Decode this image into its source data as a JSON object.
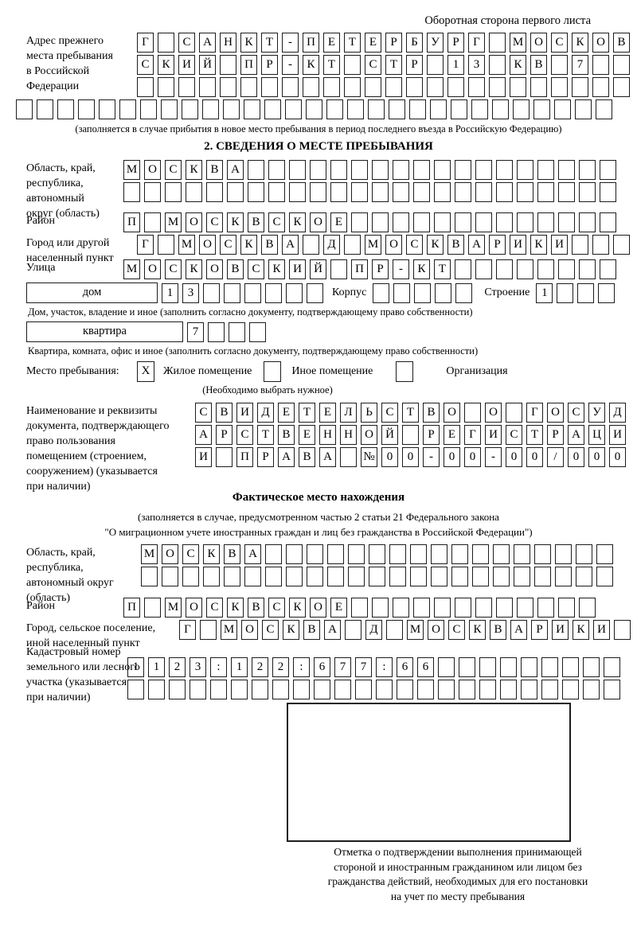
{
  "header": {
    "note": "Оборотная сторона первого листа"
  },
  "prev_address": {
    "label": "Адрес прежнего\nместа пребывания\nв Российской\nФедерации",
    "rows": [
      [
        "Г",
        "",
        "С",
        "А",
        "Н",
        "К",
        "Т",
        "-",
        "П",
        "Е",
        "Т",
        "Е",
        "Р",
        "Б",
        "У",
        "Р",
        "Г",
        "",
        "М",
        "О",
        "С",
        "К",
        "О",
        "В"
      ],
      [
        "С",
        "К",
        "И",
        "Й",
        "",
        "П",
        "Р",
        "-",
        "К",
        "Т",
        "",
        "С",
        "Т",
        "Р",
        "",
        "1",
        "3",
        "",
        "К",
        "В",
        "",
        "7",
        "",
        ""
      ],
      [
        "",
        "",
        "",
        "",
        "",
        "",
        "",
        "",
        "",
        "",
        "",
        "",
        "",
        "",
        "",
        "",
        "",
        "",
        "",
        "",
        "",
        "",
        "",
        ""
      ]
    ],
    "row_full": [
      "",
      "",
      "",
      "",
      "",
      "",
      "",
      "",
      "",
      "",
      "",
      "",
      "",
      "",
      "",
      "",
      "",
      "",
      "",
      "",
      "",
      "",
      "",
      "",
      "",
      "",
      "",
      "",
      ""
    ],
    "caption": "(заполняется в случае прибытия в новое место пребывания в период последнего въезда в Российскую Федерацию)"
  },
  "section2": {
    "title": "2. СВЕДЕНИЯ О МЕСТЕ ПРЕБЫВАНИЯ",
    "oblast": {
      "label": "Область, край,\nреспублика,\nавтономный\nокруг (область)",
      "rows": [
        [
          "М",
          "О",
          "С",
          "К",
          "В",
          "А",
          "",
          "",
          "",
          "",
          "",
          "",
          "",
          "",
          "",
          "",
          "",
          "",
          "",
          "",
          "",
          "",
          "",
          ""
        ],
        [
          "",
          "",
          "",
          "",
          "",
          "",
          "",
          "",
          "",
          "",
          "",
          "",
          "",
          "",
          "",
          "",
          "",
          "",
          "",
          "",
          "",
          "",
          "",
          ""
        ]
      ]
    },
    "rayon": {
      "label": "Район",
      "row": [
        "П",
        "",
        "М",
        "О",
        "С",
        "К",
        "В",
        "С",
        "К",
        "О",
        "Е",
        "",
        "",
        "",
        "",
        "",
        "",
        "",
        "",
        "",
        "",
        "",
        "",
        ""
      ]
    },
    "gorod": {
      "label": "Город или другой\nнаселенный пункт",
      "row": [
        "Г",
        "",
        "М",
        "О",
        "С",
        "К",
        "В",
        "А",
        "",
        "Д",
        "",
        "М",
        "О",
        "С",
        "К",
        "В",
        "А",
        "Р",
        "И",
        "К",
        "И",
        "",
        "",
        ""
      ]
    },
    "ulitsa": {
      "label": "Улица",
      "row": [
        "М",
        "О",
        "С",
        "К",
        "О",
        "В",
        "С",
        "К",
        "И",
        "Й",
        "",
        "П",
        "Р",
        "-",
        "К",
        "Т",
        "",
        "",
        "",
        "",
        "",
        "",
        "",
        ""
      ]
    },
    "dom": {
      "box_label": "дом",
      "cells": [
        "1",
        "3",
        "",
        "",
        "",
        "",
        "",
        ""
      ],
      "korpus_label": "Корпус",
      "korpus_cells": [
        "",
        "",
        "",
        "",
        ""
      ],
      "stroenie_label": "Строение",
      "stroenie_cells": [
        "1",
        "",
        "",
        ""
      ]
    },
    "dom_caption": "Дом, участок, владение и иное (заполнить согласно документу, подтверждающему право собственности)",
    "kvartira": {
      "box_label": "квартира",
      "cells": [
        "7",
        "",
        "",
        ""
      ]
    },
    "kvartira_caption": "Квартира, комната, офис и иное (заполнить согласно документу, подтверждающему право собственности)",
    "mesto": {
      "label": "Место пребывания:",
      "options": [
        {
          "checkbox": "X",
          "label": "Жилое помещение"
        },
        {
          "checkbox": "",
          "label": "Иное помещение"
        },
        {
          "checkbox": "",
          "label": "Организация"
        }
      ],
      "caption": "(Необходимо выбрать нужное)"
    },
    "document": {
      "label": "Наименование и реквизиты\nдокумента, подтверждающего\nправо пользования\nпомещением (строением,\nсооружением) (указывается\nпри наличии)",
      "rows": [
        [
          "С",
          "В",
          "И",
          "Д",
          "Е",
          "Т",
          "Е",
          "Л",
          "Ь",
          "С",
          "Т",
          "В",
          "О",
          "",
          "О",
          "",
          "Г",
          "О",
          "С",
          "У",
          "Д"
        ],
        [
          "А",
          "Р",
          "С",
          "Т",
          "В",
          "Е",
          "Н",
          "Н",
          "О",
          "Й",
          "",
          "Р",
          "Е",
          "Г",
          "И",
          "С",
          "Т",
          "Р",
          "А",
          "Ц",
          "И"
        ],
        [
          "И",
          "",
          "П",
          "Р",
          "А",
          "В",
          "А",
          "",
          "№",
          "0",
          "0",
          "-",
          "0",
          "0",
          "-",
          "0",
          "0",
          "/",
          "0",
          "0",
          "0"
        ]
      ]
    }
  },
  "fact_section": {
    "title": "Фактическое место нахождения",
    "caption": "(заполняется в случае, предусмотренном частью 2 статьи 21 Федерального закона\n\"О миграционном учете иностранных граждан и лиц без гражданства в Российской Федерации\")",
    "oblast": {
      "label": "Область, край,\nреспублика,\nавтономный округ\n(область)",
      "rows": [
        [
          "М",
          "О",
          "С",
          "К",
          "В",
          "А",
          "",
          "",
          "",
          "",
          "",
          "",
          "",
          "",
          "",
          "",
          "",
          "",
          "",
          "",
          "",
          "",
          ""
        ],
        [
          "",
          "",
          "",
          "",
          "",
          "",
          "",
          "",
          "",
          "",
          "",
          "",
          "",
          "",
          "",
          "",
          "",
          "",
          "",
          "",
          "",
          "",
          ""
        ]
      ]
    },
    "rayon": {
      "label": "Район",
      "row": [
        "П",
        "",
        "М",
        "О",
        "С",
        "К",
        "В",
        "С",
        "К",
        "О",
        "Е",
        "",
        "",
        "",
        "",
        "",
        "",
        "",
        "",
        "",
        "",
        "",
        ""
      ]
    },
    "gorod": {
      "label": "Город, сельское поселение,\nиной населенный пункт",
      "row": [
        "Г",
        "",
        "М",
        "О",
        "С",
        "К",
        "В",
        "А",
        "",
        "Д",
        "",
        "М",
        "О",
        "С",
        "К",
        "В",
        "А",
        "Р",
        "И",
        "К",
        "И",
        ""
      ]
    },
    "kadastr": {
      "label": "Кадастровый номер\nземельного или лесного\nучастка (указывается\nпри наличии)",
      "rows": [
        [
          "1",
          "1",
          "2",
          "3",
          ":",
          "1",
          "2",
          "2",
          ":",
          "6",
          "7",
          "7",
          ":",
          "6",
          "6",
          "",
          "",
          "",
          "",
          "",
          "",
          "",
          "",
          ""
        ],
        [
          "",
          "",
          "",
          "",
          "",
          "",
          "",
          "",
          "",
          "",
          "",
          "",
          "",
          "",
          "",
          "",
          "",
          "",
          "",
          "",
          "",
          "",
          "",
          ""
        ]
      ]
    },
    "stamp_caption": "Отметка о подтверждении выполнения принимающей\nстороной и иностранным гражданином или лицом без\nгражданства действий, необходимых для его постановки\nна учет по месту пребывания"
  }
}
